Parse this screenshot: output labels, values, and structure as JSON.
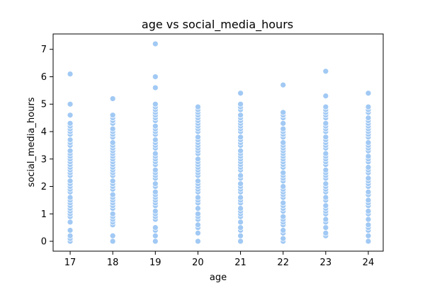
{
  "chart_data": {
    "type": "scatter",
    "title": "age vs social_media_hours",
    "xlabel": "age",
    "ylabel": "social_media_hours",
    "xlim": [
      16.6,
      24.35
    ],
    "ylim": [
      -0.36,
      7.56
    ],
    "xticks": [
      17,
      18,
      19,
      20,
      21,
      22,
      23,
      24
    ],
    "yticks": [
      0,
      1,
      2,
      3,
      4,
      5,
      6,
      7
    ],
    "grid": false,
    "marker_color": "#a1c9f4",
    "marker_edge": "#ffffff",
    "points": [
      {
        "x": 17,
        "values": [
          0.0,
          0.1,
          0.2,
          0.4,
          0.7,
          0.9,
          1.0,
          1.1,
          1.2,
          1.3,
          1.4,
          1.5,
          1.6,
          1.8,
          1.9,
          2.0,
          2.1,
          2.2,
          2.4,
          2.5,
          2.6,
          2.7,
          2.8,
          2.9,
          3.0,
          3.1,
          3.2,
          3.3,
          3.5,
          3.6,
          3.7,
          3.9,
          4.0,
          4.1,
          4.2,
          4.3,
          4.6,
          5.0,
          6.1
        ]
      },
      {
        "x": 18,
        "values": [
          0.0,
          0.2,
          0.6,
          0.7,
          0.8,
          0.9,
          1.0,
          1.2,
          1.3,
          1.4,
          1.5,
          1.6,
          1.7,
          1.9,
          2.0,
          2.1,
          2.2,
          2.4,
          2.5,
          2.6,
          2.7,
          2.8,
          2.9,
          3.0,
          3.1,
          3.2,
          3.3,
          3.4,
          3.5,
          3.6,
          3.8,
          3.9,
          4.0,
          4.1,
          4.3,
          4.4,
          4.5,
          4.6,
          5.2
        ]
      },
      {
        "x": 19,
        "values": [
          0.0,
          0.2,
          0.4,
          0.5,
          0.8,
          0.9,
          1.0,
          1.1,
          1.3,
          1.4,
          1.5,
          1.6,
          1.7,
          1.8,
          2.0,
          2.1,
          2.3,
          2.4,
          2.5,
          2.6,
          2.8,
          2.9,
          3.0,
          3.1,
          3.2,
          3.4,
          3.5,
          3.6,
          3.7,
          3.9,
          4.0,
          4.1,
          4.2,
          4.4,
          4.5,
          4.6,
          4.7,
          4.8,
          4.9,
          5.0,
          5.6,
          6.0,
          7.2
        ]
      },
      {
        "x": 20,
        "values": [
          0.0,
          0.3,
          0.5,
          0.6,
          0.8,
          0.9,
          1.0,
          1.2,
          1.4,
          1.5,
          1.6,
          1.8,
          1.9,
          2.0,
          2.1,
          2.2,
          2.4,
          2.5,
          2.6,
          2.7,
          2.8,
          2.9,
          3.0,
          3.2,
          3.3,
          3.4,
          3.5,
          3.6,
          3.7,
          3.8,
          4.0,
          4.1,
          4.2,
          4.3,
          4.4,
          4.5,
          4.6,
          4.7,
          4.8,
          4.9
        ]
      },
      {
        "x": 21,
        "values": [
          0.0,
          0.2,
          0.4,
          0.5,
          0.7,
          0.9,
          1.0,
          1.1,
          1.2,
          1.4,
          1.5,
          1.6,
          1.8,
          1.9,
          2.0,
          2.1,
          2.3,
          2.4,
          2.6,
          2.7,
          2.8,
          2.9,
          3.0,
          3.1,
          3.2,
          3.3,
          3.5,
          3.6,
          3.7,
          3.8,
          4.0,
          4.1,
          4.2,
          4.3,
          4.4,
          4.5,
          4.6,
          4.8,
          4.9,
          5.0,
          5.4
        ]
      },
      {
        "x": 22,
        "values": [
          0.0,
          0.1,
          0.3,
          0.4,
          0.6,
          0.7,
          0.8,
          0.9,
          1.1,
          1.2,
          1.3,
          1.4,
          1.6,
          1.7,
          1.8,
          1.9,
          2.0,
          2.2,
          2.3,
          2.4,
          2.5,
          2.7,
          2.8,
          2.9,
          3.0,
          3.1,
          3.2,
          3.3,
          3.4,
          3.5,
          3.6,
          3.8,
          3.9,
          4.0,
          4.1,
          4.3,
          4.5,
          4.6,
          4.7,
          5.7
        ]
      },
      {
        "x": 23,
        "values": [
          0.2,
          0.3,
          0.5,
          0.7,
          0.8,
          1.0,
          1.1,
          1.2,
          1.3,
          1.5,
          1.6,
          1.8,
          1.9,
          2.0,
          2.1,
          2.3,
          2.4,
          2.5,
          2.6,
          2.8,
          2.9,
          3.0,
          3.1,
          3.2,
          3.4,
          3.5,
          3.6,
          3.7,
          3.8,
          4.0,
          4.1,
          4.2,
          4.3,
          4.5,
          4.6,
          4.7,
          4.8,
          4.9,
          5.3,
          6.2
        ]
      },
      {
        "x": 24,
        "values": [
          0.0,
          0.2,
          0.4,
          0.5,
          0.6,
          0.8,
          1.0,
          1.1,
          1.3,
          1.4,
          1.5,
          1.7,
          1.8,
          2.0,
          2.1,
          2.2,
          2.3,
          2.5,
          2.6,
          2.7,
          2.9,
          3.0,
          3.1,
          3.3,
          3.4,
          3.5,
          3.6,
          3.8,
          3.9,
          4.0,
          4.1,
          4.2,
          4.3,
          4.4,
          4.5,
          4.7,
          4.8,
          4.9,
          5.4
        ]
      }
    ]
  }
}
